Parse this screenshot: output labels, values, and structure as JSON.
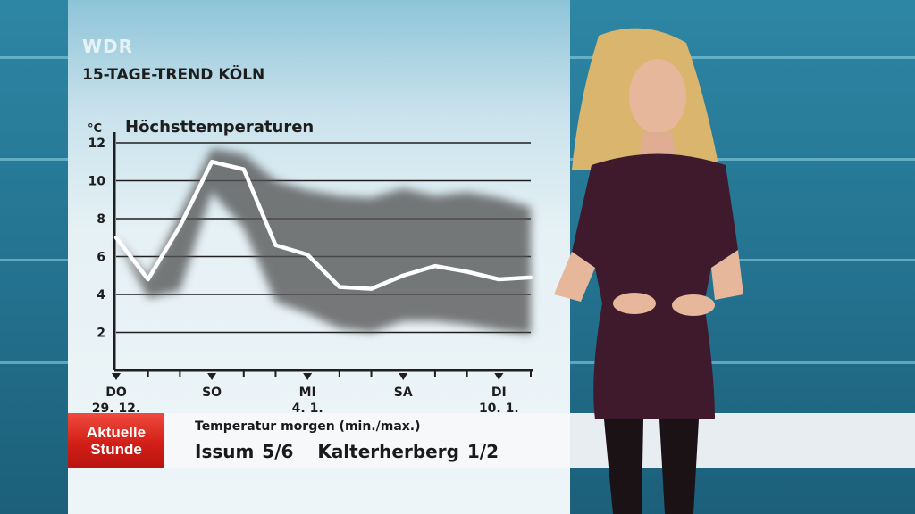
{
  "broadcast": {
    "channel": "WDR",
    "segment_title": "15-TAGE-TREND KÖLN"
  },
  "lower_third": {
    "logo_line1": "Aktuelle",
    "logo_line2": "Stunde",
    "label": "Temperatur morgen (min./max.)",
    "value": "Issum 5/6   Kalterherberg 1/2"
  },
  "colors": {
    "panel_top": "#8ec4d8",
    "studio_bg": "#2a7e9a",
    "logo_red": "#d21f18",
    "line_white": "#ffffff",
    "band_gray": "#555555"
  },
  "chart_data": {
    "type": "line",
    "title": "Höchsttemperaturen",
    "ylabel": "°C",
    "ylim": [
      0,
      12
    ],
    "yticks": [
      2,
      4,
      6,
      8,
      10,
      12
    ],
    "grid": true,
    "x_labels": [
      {
        "day": 0,
        "line1": "DO",
        "line2": "29. 12."
      },
      {
        "day": 3,
        "line1": "SO",
        "line2": ""
      },
      {
        "day": 6,
        "line1": "MI",
        "line2": "4. 1."
      },
      {
        "day": 9,
        "line1": "SA",
        "line2": ""
      },
      {
        "day": 12,
        "line1": "DI",
        "line2": "10. 1."
      }
    ],
    "series": [
      {
        "x": [
          0,
          1,
          2,
          3,
          4,
          5,
          6,
          7,
          8,
          9,
          10,
          11,
          12,
          13
        ],
        "values": [
          7,
          4.8,
          7.6,
          11,
          10.6,
          6.6,
          6.1,
          4.4,
          4.3,
          5,
          5.5,
          5.2,
          4.8,
          4.9
        ]
      }
    ],
    "shadow_band": {
      "upper": [
        7,
        4.9,
        8.2,
        11.7,
        11.4,
        10,
        9.5,
        9.2,
        9.1,
        9.6,
        9.2,
        9.4,
        9.1,
        8.6
      ],
      "lower": [
        7,
        3.8,
        4.2,
        9.4,
        7.5,
        3.6,
        3,
        2.2,
        2,
        2.6,
        2.6,
        2.4,
        2.1,
        1.9
      ]
    }
  }
}
